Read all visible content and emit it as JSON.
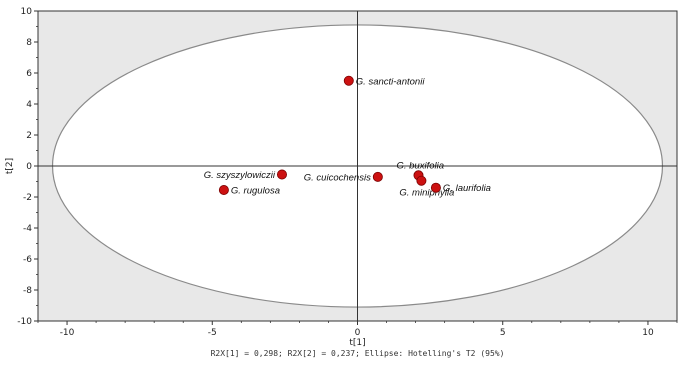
{
  "chart_data": {
    "type": "scatter",
    "title": "",
    "xlabel": "t[1]",
    "ylabel": "t[2]",
    "xlim": [
      -11,
      11
    ],
    "ylim": [
      -10,
      10
    ],
    "xticks": [
      "-10",
      "-5",
      "0",
      "5",
      "10"
    ],
    "yticks": [
      "-10",
      "-8",
      "-6",
      "-4",
      "-2",
      "0",
      "2",
      "4",
      "6",
      "8",
      "10"
    ],
    "grid": false,
    "caption": "R2X[1] = 0,298; R2X[2] = 0,237; Ellipse: Hotelling's T2 (95%)",
    "ellipse": {
      "center": [
        0,
        0
      ],
      "rx": 10.5,
      "ry": 9.1
    },
    "point_color": "#cc1111",
    "background_color": "#e8e8e8",
    "points": [
      {
        "label": "G. sancti-antonii",
        "x": -0.3,
        "y": 5.5,
        "label_side": "right"
      },
      {
        "label": "G. szyszylowiczii",
        "x": -2.6,
        "y": -0.55,
        "label_side": "left"
      },
      {
        "label": "G. rugulosa",
        "x": -4.6,
        "y": -1.55,
        "label_side": "right"
      },
      {
        "label": "G. cuicochensis",
        "x": 0.7,
        "y": -0.7,
        "label_side": "left"
      },
      {
        "label": "G. buxifolia",
        "x": 2.1,
        "y": -0.6,
        "label_side": "above"
      },
      {
        "label": "G. miniphylla",
        "x": 2.2,
        "y": -0.95,
        "label_side": "below"
      },
      {
        "label": "G. laurifolia",
        "x": 2.7,
        "y": -1.4,
        "label_side": "right"
      }
    ]
  }
}
